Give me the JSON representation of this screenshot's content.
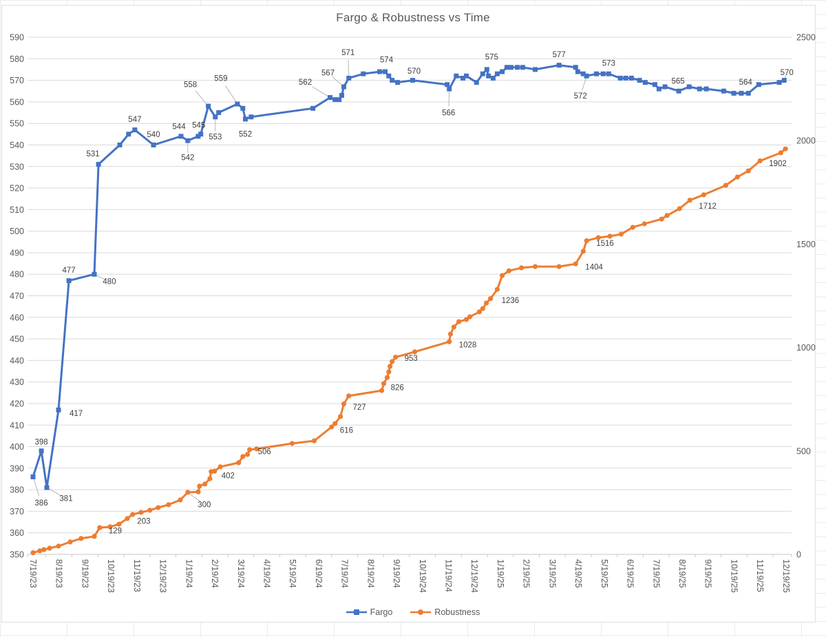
{
  "title": "Fargo & Robustness vs Time",
  "colors": {
    "fargo": "#4472C4",
    "robustness": "#ED7D31",
    "gridline": "#d9d9d9",
    "axis_line": "#c6c6c6",
    "axis_text": "#595959",
    "data_label_text": "#404040",
    "leader_line": "#a6a6a6"
  },
  "legend": {
    "entries": [
      {
        "name": "Fargo",
        "marker": "square"
      },
      {
        "name": "Robustness",
        "marker": "circle"
      }
    ],
    "position": "bottom-center"
  },
  "chart_data": {
    "type": "line",
    "title": "Fargo & Robustness vs Time",
    "grid": "horizontal-only",
    "x_axis": {
      "unit": "months since 7/19/23 (fractional x = estimated date between monthly ticks)",
      "tick_labels": [
        "7/19/23",
        "8/19/23",
        "9/19/23",
        "10/19/23",
        "11/19/23",
        "12/19/23",
        "1/19/24",
        "2/19/24",
        "3/19/24",
        "4/19/24",
        "5/19/24",
        "6/19/24",
        "7/19/24",
        "8/19/24",
        "9/19/24",
        "10/19/24",
        "11/19/24",
        "12/19/24",
        "1/19/25",
        "2/19/25",
        "3/19/25",
        "4/19/25",
        "5/19/25",
        "6/19/25",
        "7/19/25",
        "8/19/25",
        "9/19/25",
        "10/19/25",
        "11/19/25",
        "12/19/25"
      ]
    },
    "y_left": {
      "min": 350,
      "max": 590,
      "step": 10,
      "series": "Fargo",
      "tick_labels": [
        "350",
        "360",
        "370",
        "380",
        "390",
        "400",
        "410",
        "420",
        "430",
        "440",
        "450",
        "460",
        "470",
        "480",
        "490",
        "500",
        "510",
        "520",
        "530",
        "540",
        "550",
        "560",
        "570",
        "580",
        "590"
      ]
    },
    "y_right": {
      "min": 0,
      "max": 2500,
      "step": 500,
      "series": "Robustness",
      "tick_labels": [
        "0",
        "500",
        "1000",
        "1500",
        "2000",
        "2500"
      ]
    },
    "series": [
      {
        "name": "Fargo",
        "axis": "left",
        "marker": "square",
        "color": "#4472C4",
        "points": [
          [
            0,
            386
          ],
          [
            0.32,
            398
          ],
          [
            0.53,
            381
          ],
          [
            0.98,
            417
          ],
          [
            1.38,
            477
          ],
          [
            2.36,
            480
          ],
          [
            2.52,
            531
          ],
          [
            3.34,
            540
          ],
          [
            3.68,
            545
          ],
          [
            3.92,
            547
          ],
          [
            4.64,
            540
          ],
          [
            5.7,
            544
          ],
          [
            5.96,
            542
          ],
          [
            6.36,
            544
          ],
          [
            6.46,
            545
          ],
          [
            6.75,
            558
          ],
          [
            7.02,
            553
          ],
          [
            7.15,
            555
          ],
          [
            7.87,
            559
          ],
          [
            8.08,
            557
          ],
          [
            8.18,
            552
          ],
          [
            8.4,
            553
          ],
          [
            10.78,
            557
          ],
          [
            11.44,
            562
          ],
          [
            11.63,
            561
          ],
          [
            11.79,
            561
          ],
          [
            11.89,
            563
          ],
          [
            11.97,
            567
          ],
          [
            12.16,
            571
          ],
          [
            12.72,
            573
          ],
          [
            13.35,
            574
          ],
          [
            13.56,
            574
          ],
          [
            13.7,
            572
          ],
          [
            13.83,
            570
          ],
          [
            14.04,
            569
          ],
          [
            14.62,
            570
          ],
          [
            15.95,
            568
          ],
          [
            16.03,
            566
          ],
          [
            16.3,
            572
          ],
          [
            16.56,
            571
          ],
          [
            16.69,
            572
          ],
          [
            17.08,
            569
          ],
          [
            17.32,
            573
          ],
          [
            17.48,
            575
          ],
          [
            17.54,
            572
          ],
          [
            17.72,
            571
          ],
          [
            17.88,
            573
          ],
          [
            18.07,
            574
          ],
          [
            18.25,
            576
          ],
          [
            18.41,
            576
          ],
          [
            18.65,
            576
          ],
          [
            18.86,
            576
          ],
          [
            19.34,
            575
          ],
          [
            20.26,
            577
          ],
          [
            20.9,
            576
          ],
          [
            20.98,
            574
          ],
          [
            21.19,
            573
          ],
          [
            21.32,
            572
          ],
          [
            21.7,
            573
          ],
          [
            21.96,
            573
          ],
          [
            22.17,
            573
          ],
          [
            22.62,
            571
          ],
          [
            22.83,
            571
          ],
          [
            23.05,
            571
          ],
          [
            23.36,
            570
          ],
          [
            23.58,
            569
          ],
          [
            23.95,
            568
          ],
          [
            24.11,
            566
          ],
          [
            24.34,
            567
          ],
          [
            24.87,
            565
          ],
          [
            25.27,
            567
          ],
          [
            25.67,
            566
          ],
          [
            25.93,
            566
          ],
          [
            26.6,
            565
          ],
          [
            26.99,
            564
          ],
          [
            27.28,
            564
          ],
          [
            27.55,
            564
          ],
          [
            27.95,
            568
          ],
          [
            28.74,
            569
          ],
          [
            28.93,
            570
          ]
        ],
        "labels": [
          {
            "m": 0,
            "text": "386",
            "dx": 12,
            "dy": 38,
            "anchor": "middle",
            "leader": true
          },
          {
            "m": 0.32,
            "text": "398",
            "dx": 0,
            "dy": -13,
            "anchor": "middle",
            "leader": false
          },
          {
            "m": 0.53,
            "text": "381",
            "dx": 28,
            "dy": 16,
            "anchor": "middle",
            "leader": true
          },
          {
            "m": 0.98,
            "text": "417",
            "dx": 16,
            "dy": 5,
            "anchor": "start",
            "leader": false
          },
          {
            "m": 1.38,
            "text": "477",
            "dx": 0,
            "dy": -15,
            "anchor": "middle",
            "leader": false
          },
          {
            "m": 2.36,
            "text": "480",
            "dx": 22,
            "dy": 11,
            "anchor": "middle",
            "leader": true
          },
          {
            "m": 2.52,
            "text": "531",
            "dx": -8,
            "dy": -15,
            "anchor": "middle",
            "leader": false
          },
          {
            "m": 3.92,
            "text": "547",
            "dx": 0,
            "dy": -15,
            "anchor": "middle",
            "leader": false
          },
          {
            "m": 4.64,
            "text": "540",
            "dx": 0,
            "dy": -15,
            "anchor": "middle",
            "leader": false
          },
          {
            "m": 5.7,
            "text": "544",
            "dx": -3,
            "dy": -14,
            "anchor": "middle",
            "leader": false
          },
          {
            "m": 5.96,
            "text": "542",
            "dx": 0,
            "dy": 25,
            "anchor": "middle",
            "leader": true
          },
          {
            "m": 6.46,
            "text": "545",
            "dx": -3,
            "dy": -13,
            "anchor": "middle",
            "leader": false
          },
          {
            "m": 6.75,
            "text": "558",
            "dx": -26,
            "dy": -31,
            "anchor": "middle",
            "leader": true
          },
          {
            "m": 7.02,
            "text": "553",
            "dx": 0,
            "dy": 29,
            "anchor": "middle",
            "leader": true
          },
          {
            "m": 7.87,
            "text": "559",
            "dx": -24,
            "dy": -37,
            "anchor": "middle",
            "leader": true
          },
          {
            "m": 8.18,
            "text": "552",
            "dx": 0,
            "dy": 22,
            "anchor": "middle",
            "leader": false
          },
          {
            "m": 11.44,
            "text": "562",
            "dx": -36,
            "dy": -22,
            "anchor": "middle",
            "leader": true
          },
          {
            "m": 11.97,
            "text": "567",
            "dx": -23,
            "dy": -20,
            "anchor": "middle",
            "leader": true
          },
          {
            "m": 12.16,
            "text": "571",
            "dx": -1,
            "dy": -37,
            "anchor": "middle",
            "leader": true
          },
          {
            "m": 13.56,
            "text": "574",
            "dx": 2,
            "dy": -17,
            "anchor": "middle",
            "leader": false
          },
          {
            "m": 14.62,
            "text": "570",
            "dx": 2,
            "dy": -13,
            "anchor": "middle",
            "leader": false
          },
          {
            "m": 16.03,
            "text": "566",
            "dx": -1,
            "dy": 35,
            "anchor": "middle",
            "leader": true
          },
          {
            "m": 17.48,
            "text": "575",
            "dx": 7,
            "dy": -18,
            "anchor": "middle",
            "leader": false
          },
          {
            "m": 20.26,
            "text": "577",
            "dx": 0,
            "dy": -15,
            "anchor": "middle",
            "leader": false
          },
          {
            "m": 21.32,
            "text": "572",
            "dx": -9,
            "dy": 29,
            "anchor": "middle",
            "leader": true
          },
          {
            "m": 22.17,
            "text": "573",
            "dx": 0,
            "dy": -15,
            "anchor": "middle",
            "leader": false
          },
          {
            "m": 24.87,
            "text": "565",
            "dx": -1,
            "dy": -14,
            "anchor": "middle",
            "leader": false
          },
          {
            "m": 27.55,
            "text": "564",
            "dx": -4,
            "dy": -16,
            "anchor": "middle",
            "leader": false
          },
          {
            "m": 28.93,
            "text": "570",
            "dx": 4,
            "dy": -11,
            "anchor": "middle",
            "leader": true
          }
        ]
      },
      {
        "name": "Robustness",
        "axis": "right",
        "marker": "circle",
        "color": "#ED7D31",
        "points": [
          [
            0,
            8
          ],
          [
            0.26,
            17
          ],
          [
            0.42,
            23
          ],
          [
            0.64,
            30
          ],
          [
            0.98,
            40
          ],
          [
            1.43,
            60
          ],
          [
            1.85,
            77
          ],
          [
            2.36,
            87
          ],
          [
            2.57,
            129
          ],
          [
            2.97,
            133
          ],
          [
            3.31,
            146
          ],
          [
            3.63,
            173
          ],
          [
            3.84,
            193
          ],
          [
            4.16,
            203
          ],
          [
            4.5,
            213
          ],
          [
            4.82,
            226
          ],
          [
            5.22,
            240
          ],
          [
            5.67,
            263
          ],
          [
            5.96,
            300
          ],
          [
            6.36,
            302
          ],
          [
            6.41,
            330
          ],
          [
            6.62,
            340
          ],
          [
            6.81,
            366
          ],
          [
            6.86,
            400
          ],
          [
            6.99,
            402
          ],
          [
            7.21,
            423
          ],
          [
            7.92,
            443
          ],
          [
            8.08,
            473
          ],
          [
            8.26,
            483
          ],
          [
            8.34,
            506
          ],
          [
            8.61,
            510
          ],
          [
            9.98,
            536
          ],
          [
            10.83,
            549
          ],
          [
            11.5,
            616
          ],
          [
            11.63,
            632
          ],
          [
            11.84,
            666
          ],
          [
            11.97,
            727
          ],
          [
            12.16,
            766
          ],
          [
            13.43,
            792
          ],
          [
            13.51,
            826
          ],
          [
            13.64,
            855
          ],
          [
            13.7,
            882
          ],
          [
            13.75,
            909
          ],
          [
            13.83,
            932
          ],
          [
            13.96,
            953
          ],
          [
            14.7,
            979
          ],
          [
            16.03,
            1028
          ],
          [
            16.08,
            1065
          ],
          [
            16.21,
            1099
          ],
          [
            16.4,
            1125
          ],
          [
            16.69,
            1135
          ],
          [
            16.82,
            1148
          ],
          [
            17.19,
            1172
          ],
          [
            17.32,
            1188
          ],
          [
            17.46,
            1215
          ],
          [
            17.62,
            1236
          ],
          [
            17.88,
            1281
          ],
          [
            18.07,
            1348
          ],
          [
            18.33,
            1371
          ],
          [
            18.81,
            1385
          ],
          [
            19.34,
            1391
          ],
          [
            20.26,
            1391
          ],
          [
            20.9,
            1404
          ],
          [
            21.19,
            1465
          ],
          [
            21.32,
            1516
          ],
          [
            21.77,
            1531
          ],
          [
            22.22,
            1538
          ],
          [
            22.65,
            1548
          ],
          [
            23.1,
            1581
          ],
          [
            23.55,
            1598
          ],
          [
            24.21,
            1621
          ],
          [
            24.42,
            1638
          ],
          [
            24.9,
            1671
          ],
          [
            25.3,
            1712
          ],
          [
            25.83,
            1738
          ],
          [
            26.68,
            1784
          ],
          [
            27.13,
            1824
          ],
          [
            27.55,
            1854
          ],
          [
            28,
            1902
          ],
          [
            28.8,
            1941
          ],
          [
            28.98,
            1960
          ]
        ],
        "labels": [
          {
            "m": 2.57,
            "text": "129",
            "dx": 13,
            "dy": 5,
            "anchor": "start",
            "leader": false
          },
          {
            "m": 4.16,
            "text": "203",
            "dx": 4,
            "dy": 13,
            "anchor": "middle",
            "leader": false
          },
          {
            "m": 5.96,
            "text": "300",
            "dx": 24,
            "dy": 18,
            "anchor": "middle",
            "leader": true
          },
          {
            "m": 6.99,
            "text": "402",
            "dx": 10,
            "dy": 7,
            "anchor": "start",
            "leader": false
          },
          {
            "m": 8.34,
            "text": "506",
            "dx": 12,
            "dy": 3,
            "anchor": "start",
            "leader": false
          },
          {
            "m": 11.5,
            "text": "616",
            "dx": 12,
            "dy": 5,
            "anchor": "start",
            "leader": false
          },
          {
            "m": 11.97,
            "text": "727",
            "dx": 13,
            "dy": 5,
            "anchor": "start",
            "leader": false
          },
          {
            "m": 13.51,
            "text": "826",
            "dx": 10,
            "dy": 6,
            "anchor": "start",
            "leader": false
          },
          {
            "m": 13.96,
            "text": "953",
            "dx": 13,
            "dy": 2,
            "anchor": "start",
            "leader": false
          },
          {
            "m": 16.03,
            "text": "1028",
            "dx": 14,
            "dy": 5,
            "anchor": "start",
            "leader": false
          },
          {
            "m": 17.62,
            "text": "1236",
            "dx": 16,
            "dy": 3,
            "anchor": "start",
            "leader": false
          },
          {
            "m": 20.9,
            "text": "1404",
            "dx": 14,
            "dy": 5,
            "anchor": "start",
            "leader": false
          },
          {
            "m": 21.32,
            "text": "1516",
            "dx": 14,
            "dy": 4,
            "anchor": "start",
            "leader": false
          },
          {
            "m": 25.3,
            "text": "1712",
            "dx": 13,
            "dy": 9,
            "anchor": "start",
            "leader": false
          },
          {
            "m": 28,
            "text": "1902",
            "dx": 13,
            "dy": 4,
            "anchor": "start",
            "leader": false
          }
        ]
      }
    ]
  }
}
